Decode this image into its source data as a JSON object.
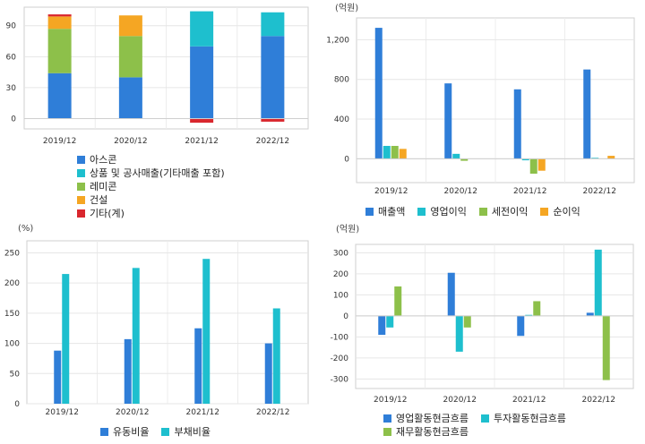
{
  "chart_data": [
    {
      "type": "bar",
      "stacked": true,
      "unit_label": "",
      "categories": [
        "2019/12",
        "2020/12",
        "2021/12",
        "2022/12"
      ],
      "yticks": [
        0,
        30,
        60,
        90
      ],
      "ylim": [
        -10,
        108
      ],
      "series": [
        {
          "name": "아스콘",
          "color": "#2f7ed8",
          "values": [
            44,
            40,
            70,
            80
          ]
        },
        {
          "name": "상품 및 공사매출(기타매출 포함)",
          "color": "#1ebfce",
          "values": [
            0,
            0,
            34,
            23
          ]
        },
        {
          "name": "레미콘",
          "color": "#8dc04a",
          "values": [
            43,
            40,
            0,
            0
          ]
        },
        {
          "name": "건설",
          "color": "#f5a623",
          "values": [
            12,
            20,
            0,
            0
          ]
        },
        {
          "name": "기타(계)",
          "color": "#d9272e",
          "values": [
            2,
            0,
            -4,
            -3
          ]
        }
      ],
      "legend_position": "bottom",
      "grid": true
    },
    {
      "type": "bar",
      "stacked": false,
      "unit_label": "(억원)",
      "categories": [
        "2019/12",
        "2020/12",
        "2021/12",
        "2022/12"
      ],
      "yticks": [
        0,
        400,
        800,
        1200
      ],
      "ytick_labels": [
        "0",
        "400",
        "800",
        "1,200"
      ],
      "ylim": [
        -240,
        1420
      ],
      "series": [
        {
          "name": "매출액",
          "color": "#2f7ed8",
          "values": [
            1320,
            760,
            700,
            900
          ]
        },
        {
          "name": "영업이익",
          "color": "#1ebfce",
          "values": [
            130,
            50,
            -15,
            10
          ]
        },
        {
          "name": "세전이익",
          "color": "#8dc04a",
          "values": [
            130,
            -20,
            -150,
            0
          ]
        },
        {
          "name": "순이익",
          "color": "#f5a623",
          "values": [
            100,
            0,
            -120,
            30
          ]
        }
      ],
      "legend_position": "bottom",
      "grid": true
    },
    {
      "type": "bar",
      "stacked": false,
      "unit_label": "(%)",
      "categories": [
        "2019/12",
        "2020/12",
        "2021/12",
        "2022/12"
      ],
      "yticks": [
        0,
        50,
        100,
        150,
        200,
        250
      ],
      "ylim": [
        0,
        270
      ],
      "series": [
        {
          "name": "유동비율",
          "color": "#2f7ed8",
          "values": [
            88,
            107,
            125,
            100
          ]
        },
        {
          "name": "부채비율",
          "color": "#1ebfce",
          "values": [
            215,
            225,
            240,
            158
          ]
        }
      ],
      "legend_position": "bottom",
      "grid": true
    },
    {
      "type": "bar",
      "stacked": false,
      "unit_label": "(억원)",
      "categories": [
        "2019/12",
        "2020/12",
        "2021/12",
        "2022/12"
      ],
      "yticks": [
        -300,
        -200,
        -100,
        0,
        100,
        200,
        300
      ],
      "ylim": [
        -345,
        340
      ],
      "series": [
        {
          "name": "영업활동현금흐름",
          "color": "#2f7ed8",
          "values": [
            -90,
            205,
            -95,
            15
          ]
        },
        {
          "name": "투자활동현금흐름",
          "color": "#1ebfce",
          "values": [
            -55,
            -170,
            5,
            315
          ]
        },
        {
          "name": "재무활동현금흐름",
          "color": "#8dc04a",
          "values": [
            140,
            -55,
            70,
            -305
          ]
        }
      ],
      "legend_position": "bottom",
      "grid": true
    }
  ]
}
